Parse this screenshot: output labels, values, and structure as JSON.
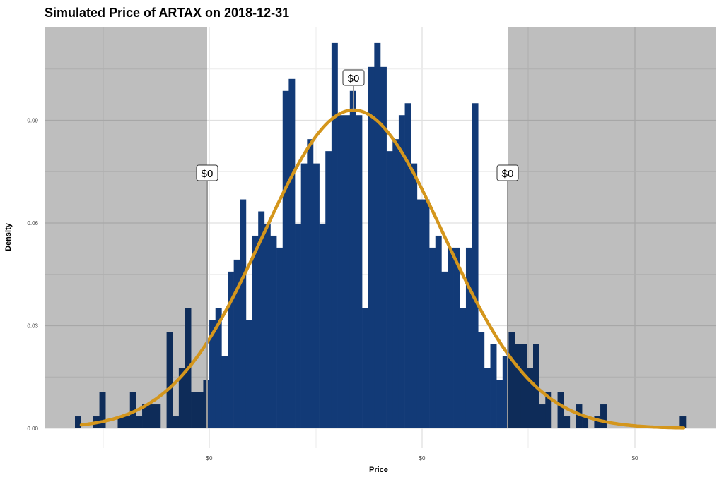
{
  "chart_data": {
    "type": "bar",
    "title": "Simulated Price of ARTAX on 2018-12-31",
    "xlabel": "Price",
    "ylabel": "Density",
    "y_ticks": [
      "0.00",
      "0.03",
      "0.06",
      "0.09"
    ],
    "y_tick_values": [
      0,
      0.03,
      0.06,
      0.09
    ],
    "ylim": [
      0,
      0.117
    ],
    "x_ticks": [
      "$0",
      "$0",
      "$0"
    ],
    "grid": true,
    "histogram_density": [
      0.0035,
      0,
      0,
      0.0035,
      0.0106,
      0,
      0,
      0.0035,
      0.0035,
      0.0106,
      0.0035,
      0.007,
      0.007,
      0.007,
      0,
      0.0282,
      0.0035,
      0.0176,
      0.0352,
      0.0106,
      0.0106,
      0.0141,
      0.0317,
      0.0352,
      0.0211,
      0.0458,
      0.0493,
      0.0669,
      0.0317,
      0.0563,
      0.0634,
      0.0598,
      0.0563,
      0.0528,
      0.0986,
      0.1021,
      0.0598,
      0.0774,
      0.0845,
      0.0774,
      0.0598,
      0.081,
      0.1126,
      0.0915,
      0.0915,
      0.0986,
      0.0915,
      0.0352,
      0.1056,
      0.1126,
      0.1056,
      0.081,
      0.0845,
      0.0915,
      0.095,
      0.0774,
      0.0669,
      0.0669,
      0.0528,
      0.0563,
      0.0458,
      0.0528,
      0.0528,
      0.0352,
      0.0528,
      0.095,
      0.0282,
      0.0176,
      0.0246,
      0.0141,
      0.0211,
      0.0282,
      0.0246,
      0.0246,
      0.0176,
      0.0246,
      0.007,
      0.0106,
      0,
      0.0106,
      0.0035,
      0,
      0.007,
      0.0035,
      0,
      0.0035,
      0.007,
      0,
      0,
      0,
      0,
      0,
      0,
      0,
      0,
      0,
      0,
      0,
      0,
      0.0035
    ],
    "fit_curve": "normal density",
    "fit_peak_density": 0.093,
    "quantile_labels": [
      "$0",
      "$0",
      "$0"
    ],
    "shaded_tails": "outside lower and upper quantile markers",
    "colors": {
      "bars": "#123a77",
      "bars_in_tail": "#253e66",
      "tail_shade": "#b3b3b3",
      "curve": "#d4961c"
    }
  }
}
